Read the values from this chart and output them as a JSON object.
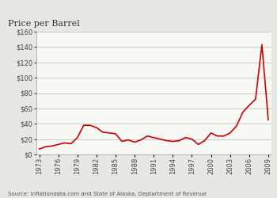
{
  "title": "Price per Barrel",
  "source_text": "Source: Inflationdata.com and State of Alaska, Deptartment of Revenue",
  "line_color": "#cc0000",
  "fig_bg_color": "#e8e8e3",
  "plot_bg_color": "#f8f8f5",
  "years": [
    1973,
    1974,
    1975,
    1976,
    1977,
    1978,
    1979,
    1980,
    1981,
    1982,
    1983,
    1984,
    1985,
    1986,
    1987,
    1988,
    1989,
    1990,
    1991,
    1992,
    1993,
    1994,
    1995,
    1996,
    1997,
    1998,
    1999,
    2000,
    2001,
    2002,
    2003,
    2004,
    2005,
    2006,
    2007,
    2008,
    2009
  ],
  "prices": [
    7,
    10,
    11,
    13,
    15,
    14,
    22,
    38,
    38,
    35,
    29,
    28,
    27,
    17,
    19,
    16,
    19,
    24,
    22,
    20,
    18,
    17,
    18,
    22,
    20,
    13,
    18,
    28,
    24,
    24,
    28,
    37,
    55,
    64,
    72,
    143,
    45
  ],
  "ylim": [
    0,
    160
  ],
  "yticks": [
    0,
    20,
    40,
    60,
    80,
    100,
    120,
    140,
    160
  ],
  "xtick_years": [
    1973,
    1976,
    1979,
    1982,
    1985,
    1988,
    1991,
    1994,
    1997,
    2000,
    2003,
    2006,
    2009
  ],
  "title_fontsize": 8,
  "tick_fontsize": 6,
  "source_fontsize": 5,
  "line_width": 1.2
}
